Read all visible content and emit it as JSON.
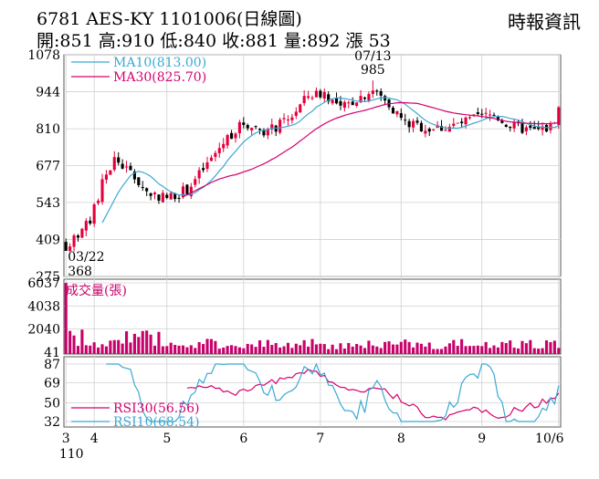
{
  "header": {
    "title": "6781  AES-KY 1101006(日線圖)",
    "ohlc": "開:851 高:910 低:840 收:881 量:892 漲 53",
    "source": "時報資訊"
  },
  "colors": {
    "up": "#e4003a",
    "down": "#000000",
    "ma10": "#3aa9d4",
    "ma30": "#d6006e",
    "volume": "#c8006a",
    "rsi10": "#3aa9d4",
    "rsi30": "#d6006e",
    "grid": "#d0d0d0",
    "frame": "#555555"
  },
  "chart_data": [
    {
      "type": "candlestick",
      "y_ticks": [
        1078,
        944,
        810,
        677,
        543,
        409,
        275
      ],
      "ylim": [
        275,
        1078
      ],
      "legend": [
        {
          "key": "ma10",
          "label": "MA10(813.00)"
        },
        {
          "key": "ma30",
          "label": "MA30(825.70)"
        }
      ],
      "annotations": [
        {
          "label": "07/13",
          "value": "985",
          "index": 76
        },
        {
          "label": "03/22",
          "value": "368",
          "index": 0
        }
      ],
      "x_ticks": [
        "3",
        "4",
        "5",
        "6",
        "7",
        "8",
        "9",
        "10/6"
      ],
      "x_tick_index": [
        0,
        7,
        25,
        44,
        63,
        83,
        103,
        122
      ],
      "x_sub": "110"
    },
    {
      "type": "bar",
      "label": "成交量(張)",
      "y_ticks": [
        6037,
        4038,
        2040,
        41
      ],
      "ylim": [
        41,
        6037
      ]
    },
    {
      "type": "line",
      "y_ticks": [
        87,
        69,
        50,
        32
      ],
      "ylim": [
        32,
        87
      ],
      "legend": [
        {
          "key": "rsi30",
          "label": "RSI30(56.56)"
        },
        {
          "key": "rsi10",
          "label": "RSI10(68.54)"
        }
      ]
    }
  ]
}
